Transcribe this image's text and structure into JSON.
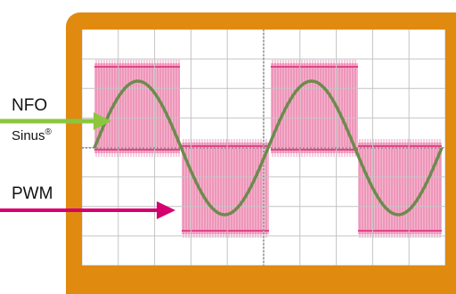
{
  "labels": {
    "nfo": "NFO",
    "sinus": "Sinus",
    "sinus_mark": "®",
    "pwm": "PWM"
  },
  "colors": {
    "frame": "#e08a10",
    "sine": "#6e8a4e",
    "pwm_fill": "#f2a9c4",
    "pwm_lines": "#e0458a",
    "nfo_arrow": "#8cc63f",
    "pwm_arrow": "#d4006e",
    "grid": "#c4c4c4",
    "axis": "#8c8c8c"
  }
}
